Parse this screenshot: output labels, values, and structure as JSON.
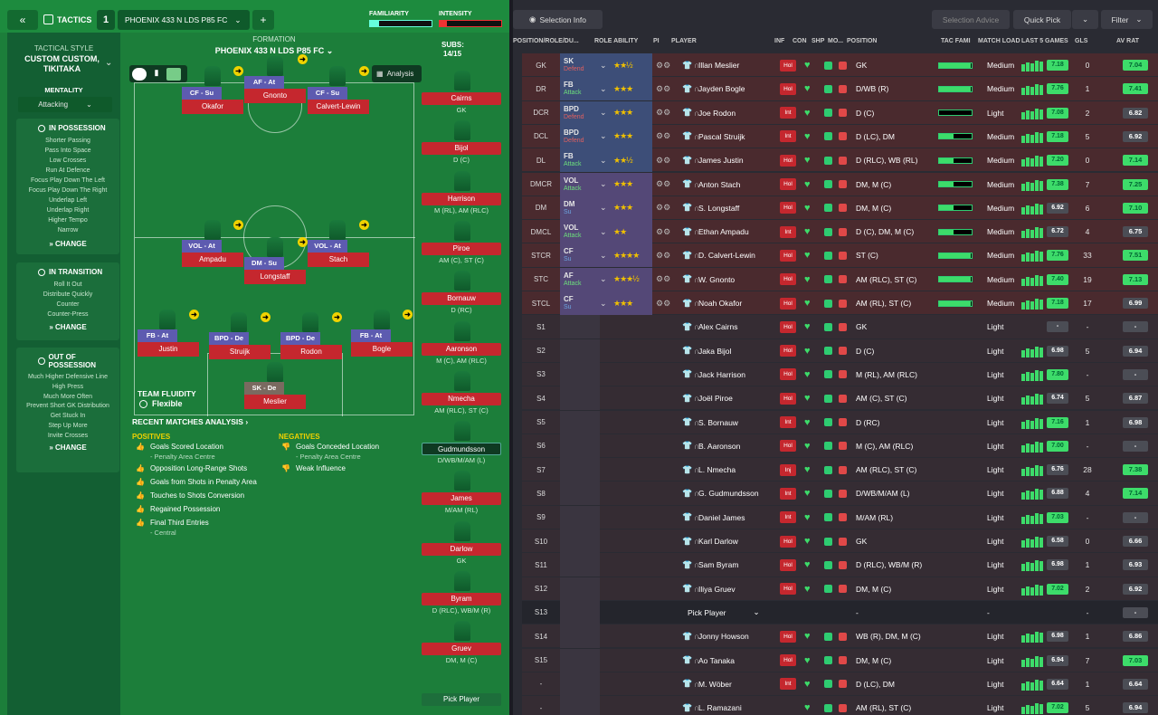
{
  "topbar": {
    "tactics_label": "TACTICS",
    "slot": "1",
    "tactic_name": "PHOENIX 433 N LDS P85 FC",
    "familiarity": "FAMILIARITY",
    "intensity": "INTENSITY"
  },
  "sidebar": {
    "style_title": "TACTICAL STYLE",
    "style_value": "CUSTOM CUSTOM, TIKITAKA",
    "mentality_title": "MENTALITY",
    "mentality_value": "Attacking",
    "in_possession": {
      "title": "IN POSSESSION",
      "items": [
        "Shorter Passing",
        "Pass Into Space",
        "Low Crosses",
        "Run At Defence",
        "Focus Play Down The Left",
        "Focus Play Down The Right",
        "Underlap Left",
        "Underlap Right",
        "Higher Tempo",
        "Narrow"
      ]
    },
    "in_transition": {
      "title": "IN TRANSITION",
      "items": [
        "Roll It Out",
        "Distribute Quickly",
        "Counter",
        "Counter-Press"
      ]
    },
    "out_of_possession": {
      "title": "OUT OF POSSESSION",
      "items": [
        "Much Higher Defensive Line",
        "High Press",
        "Much More Often",
        "Prevent Short GK Distribution",
        "Get Stuck In",
        "Step Up More",
        "Invite Crosses"
      ]
    },
    "change_label": "CHANGE"
  },
  "formation": {
    "label": "FORMATION",
    "name": "PHOENIX 433 N LDS P85 FC",
    "analysis": "Analysis",
    "subs_label": "SUBS:",
    "subs_count": "14/15",
    "fluidity_label": "TEAM FLUIDITY",
    "fluidity_value": "Flexible"
  },
  "pitch_players": [
    {
      "role": "CF - Su",
      "name": "Okafor"
    },
    {
      "role": "AF - At",
      "name": "Gnonto"
    },
    {
      "role": "CF - Su",
      "name": "Calvert-Lewin"
    },
    {
      "role": "VOL - At",
      "name": "Ampadu"
    },
    {
      "role": "DM - Su",
      "name": "Longstaff"
    },
    {
      "role": "VOL - At",
      "name": "Stach"
    },
    {
      "role": "FB - At",
      "name": "Justin"
    },
    {
      "role": "BPD - De",
      "name": "Struijk"
    },
    {
      "role": "BPD - De",
      "name": "Rodon"
    },
    {
      "role": "FB - At",
      "name": "Bogle"
    },
    {
      "role": "SK - De",
      "name": "Meslier"
    }
  ],
  "subs": [
    {
      "name": "Cairns",
      "pos": "GK"
    },
    {
      "name": "Bijol",
      "pos": "D (C)"
    },
    {
      "name": "Harrison",
      "pos": "M (RL), AM (RLC)"
    },
    {
      "name": "Piroe",
      "pos": "AM (C), ST (C)"
    },
    {
      "name": "Bornauw",
      "pos": "D (RC)"
    },
    {
      "name": "Aaronson",
      "pos": "M (C), AM (RLC)"
    },
    {
      "name": "Nmecha",
      "pos": "AM (RLC), ST (C)"
    },
    {
      "name": "Gudmundsson",
      "pos": "D/WB/M/AM (L)"
    },
    {
      "name": "James",
      "pos": "M/AM (RL)"
    },
    {
      "name": "Darlow",
      "pos": "GK"
    },
    {
      "name": "Byram",
      "pos": "D (RLC), WB/M (R)"
    },
    {
      "name": "Gruev",
      "pos": "DM, M (C)"
    },
    {
      "name": "Pick Player",
      "pos": ""
    }
  ],
  "analysis": {
    "title": "RECENT MATCHES ANALYSIS",
    "positives_label": "POSITIVES",
    "negatives_label": "NEGATIVES",
    "positives": [
      {
        "t": "Goals Scored Location",
        "s": "- Penalty Area Centre"
      },
      {
        "t": "Opposition Long-Range Shots",
        "s": ""
      },
      {
        "t": "Goals from Shots in Penalty Area",
        "s": ""
      },
      {
        "t": "Touches to Shots Conversion",
        "s": ""
      },
      {
        "t": "Regained Possession",
        "s": ""
      },
      {
        "t": "Final Third Entries",
        "s": "- Central"
      }
    ],
    "negatives": [
      {
        "t": "Goals Conceded Location",
        "s": "- Penalty Area Centre"
      },
      {
        "t": "Weak Influence",
        "s": ""
      }
    ]
  },
  "toolbar": {
    "selection_info": "Selection Info",
    "selection_advice": "Selection Advice",
    "quick_pick": "Quick Pick",
    "filter": "Filter"
  },
  "headers": [
    "POSITION/ROLE/DU...",
    "ROLE ABILITY",
    "PI",
    "PLAYER",
    "INF",
    "CON",
    "SHP",
    "MO...",
    "POSITION",
    "TAC FAMI",
    "MATCH LOAD",
    "LAST 5 GAMES",
    "GLS",
    "AV RAT"
  ],
  "rows": [
    {
      "pos": "GK",
      "role": "SK",
      "duty": "Defend",
      "stars": "★★½",
      "name": "Illan Meslier",
      "inf": "Hol",
      "position": "GK",
      "fam": 0.98,
      "load": "Medium",
      "rating": "7.18",
      "gls": "0",
      "av": "7.04"
    },
    {
      "pos": "DR",
      "role": "FB",
      "duty": "Attack",
      "stars": "★★★",
      "name": "Jayden Bogle",
      "inf": "Hol",
      "position": "D/WB (R)",
      "fam": 0.98,
      "load": "Medium",
      "rating": "7.76",
      "gls": "1",
      "av": "7.41"
    },
    {
      "pos": "DCR",
      "role": "BPD",
      "duty": "Defend",
      "stars": "★★★",
      "name": "Joe Rodon",
      "inf": "Int",
      "position": "D (C)",
      "fam": 0,
      "load": "Light",
      "rating": "7.08",
      "gls": "2",
      "av": "6.82"
    },
    {
      "pos": "DCL",
      "role": "BPD",
      "duty": "Defend",
      "stars": "★★★",
      "name": "Pascal Struijk",
      "inf": "Int",
      "position": "D (LC), DM",
      "fam": 0.45,
      "load": "Medium",
      "rating": "7.18",
      "gls": "5",
      "av": "6.92"
    },
    {
      "pos": "DL",
      "role": "FB",
      "duty": "Attack",
      "stars": "★★½",
      "name": "James Justin",
      "inf": "Hol",
      "position": "D (RLC), WB (RL)",
      "fam": 0.45,
      "load": "Medium",
      "rating": "7.20",
      "gls": "0",
      "av": "7.14"
    },
    {
      "pos": "DMCR",
      "role": "VOL",
      "duty": "Attack",
      "stars": "★★★",
      "name": "Anton Stach",
      "inf": "Hol",
      "position": "DM, M (C)",
      "fam": 0.45,
      "load": "Medium",
      "rating": "7.38",
      "gls": "7",
      "av": "7.25"
    },
    {
      "pos": "DM",
      "role": "DM",
      "duty": "Su",
      "stars": "★★★",
      "name": "S. Longstaff",
      "inf": "Hol",
      "position": "DM, M (C)",
      "fam": 0.45,
      "load": "Medium",
      "rating": "6.92",
      "gls": "6",
      "av": "7.10"
    },
    {
      "pos": "DMCL",
      "role": "VOL",
      "duty": "Attack",
      "stars": "★★",
      "name": "Ethan Ampadu",
      "inf": "Int",
      "position": "D (C), DM, M (C)",
      "fam": 0.45,
      "load": "Medium",
      "rating": "6.72",
      "gls": "4",
      "av": "6.75"
    },
    {
      "pos": "STCR",
      "role": "CF",
      "duty": "Su",
      "stars": "★★★★",
      "name": "D. Calvert-Lewin",
      "inf": "Hol",
      "position": "ST (C)",
      "fam": 0.98,
      "load": "Medium",
      "rating": "7.76",
      "gls": "33",
      "av": "7.51"
    },
    {
      "pos": "STC",
      "role": "AF",
      "duty": "Attack",
      "stars": "★★★½",
      "name": "W. Gnonto",
      "inf": "Hol",
      "position": "AM (RLC), ST (C)",
      "fam": 0.98,
      "load": "Medium",
      "rating": "7.40",
      "gls": "19",
      "av": "7.13"
    },
    {
      "pos": "STCL",
      "role": "CF",
      "duty": "Su",
      "stars": "★★★",
      "name": "Noah Okafor",
      "inf": "Hol",
      "position": "AM (RL), ST (C)",
      "fam": 0.98,
      "load": "Medium",
      "rating": "7.18",
      "gls": "17",
      "av": "6.99"
    },
    {
      "pos": "S1",
      "role": "",
      "duty": "",
      "stars": "",
      "name": "Alex Cairns",
      "inf": "Hol",
      "position": "GK",
      "fam": -1,
      "load": "Light",
      "rating": "-",
      "gls": "-",
      "av": "-"
    },
    {
      "pos": "S2",
      "role": "",
      "duty": "",
      "stars": "",
      "name": "Jaka Bijol",
      "inf": "Hol",
      "position": "D (C)",
      "fam": -1,
      "load": "Light",
      "rating": "6.98",
      "gls": "5",
      "av": "6.94"
    },
    {
      "pos": "S3",
      "role": "",
      "duty": "",
      "stars": "",
      "name": "Jack Harrison",
      "inf": "Hol",
      "position": "M (RL), AM (RLC)",
      "fam": -1,
      "load": "Light",
      "rating": "7.80",
      "gls": "-",
      "av": "-"
    },
    {
      "pos": "S4",
      "role": "",
      "duty": "",
      "stars": "",
      "name": "Joël Piroe",
      "inf": "Hol",
      "position": "AM (C), ST (C)",
      "fam": -1,
      "load": "Light",
      "rating": "6.74",
      "gls": "5",
      "av": "6.87"
    },
    {
      "pos": "S5",
      "role": "",
      "duty": "",
      "stars": "",
      "name": "S. Bornauw",
      "inf": "Int",
      "position": "D (RC)",
      "fam": -1,
      "load": "Light",
      "rating": "7.16",
      "gls": "1",
      "av": "6.98"
    },
    {
      "pos": "S6",
      "role": "",
      "duty": "",
      "stars": "",
      "name": "B. Aaronson",
      "inf": "Hol",
      "position": "M (C), AM (RLC)",
      "fam": -1,
      "load": "Light",
      "rating": "7.00",
      "gls": "-",
      "av": "-"
    },
    {
      "pos": "S7",
      "role": "",
      "duty": "",
      "stars": "",
      "name": "L. Nmecha",
      "inf": "Inj",
      "position": "AM (RLC), ST (C)",
      "fam": -1,
      "load": "Light",
      "rating": "6.76",
      "gls": "28",
      "av": "7.38"
    },
    {
      "pos": "S8",
      "role": "",
      "duty": "",
      "stars": "",
      "name": "G. Gudmundsson",
      "inf": "Int",
      "position": "D/WB/M/AM (L)",
      "fam": -1,
      "load": "Light",
      "rating": "6.88",
      "gls": "4",
      "av": "7.14"
    },
    {
      "pos": "S9",
      "role": "",
      "duty": "",
      "stars": "",
      "name": "Daniel James",
      "inf": "Int",
      "position": "M/AM (RL)",
      "fam": -1,
      "load": "Light",
      "rating": "7.03",
      "gls": "-",
      "av": "-"
    },
    {
      "pos": "S10",
      "role": "",
      "duty": "",
      "stars": "",
      "name": "Karl Darlow",
      "inf": "Hol",
      "position": "GK",
      "fam": -1,
      "load": "Light",
      "rating": "6.58",
      "gls": "0",
      "av": "6.66"
    },
    {
      "pos": "S11",
      "role": "",
      "duty": "",
      "stars": "",
      "name": "Sam Byram",
      "inf": "Hol",
      "position": "D (RLC), WB/M (R)",
      "fam": -1,
      "load": "Light",
      "rating": "6.98",
      "gls": "1",
      "av": "6.93"
    },
    {
      "pos": "S12",
      "role": "",
      "duty": "",
      "stars": "",
      "name": "Iliya Gruev",
      "inf": "Hol",
      "position": "DM, M (C)",
      "fam": -1,
      "load": "Light",
      "rating": "7.02",
      "gls": "2",
      "av": "6.92"
    },
    {
      "pos": "S13",
      "role": "",
      "duty": "",
      "stars": "",
      "name": "Pick Player",
      "inf": "",
      "position": "-",
      "fam": -1,
      "load": "-",
      "rating": "",
      "gls": "-",
      "av": "-"
    },
    {
      "pos": "S14",
      "role": "",
      "duty": "",
      "stars": "",
      "name": "Jonny Howson",
      "inf": "Hol",
      "position": "WB (R), DM, M (C)",
      "fam": -1,
      "load": "Light",
      "rating": "6.98",
      "gls": "1",
      "av": "6.86"
    },
    {
      "pos": "S15",
      "role": "",
      "duty": "",
      "stars": "",
      "name": "Ao Tanaka",
      "inf": "Hol",
      "position": "DM, M (C)",
      "fam": -1,
      "load": "Light",
      "rating": "6.94",
      "gls": "7",
      "av": "7.03"
    },
    {
      "pos": "-",
      "role": "",
      "duty": "",
      "stars": "",
      "name": "M. Wöber",
      "inf": "Int",
      "position": "D (LC), DM",
      "fam": -1,
      "load": "Light",
      "rating": "6.64",
      "gls": "1",
      "av": "6.64"
    },
    {
      "pos": "-",
      "role": "",
      "duty": "",
      "stars": "",
      "name": "L. Ramazani",
      "inf": "",
      "position": "AM (RL), ST (C)",
      "fam": -1,
      "load": "Light",
      "rating": "7.02",
      "gls": "5",
      "av": "6.94"
    }
  ]
}
